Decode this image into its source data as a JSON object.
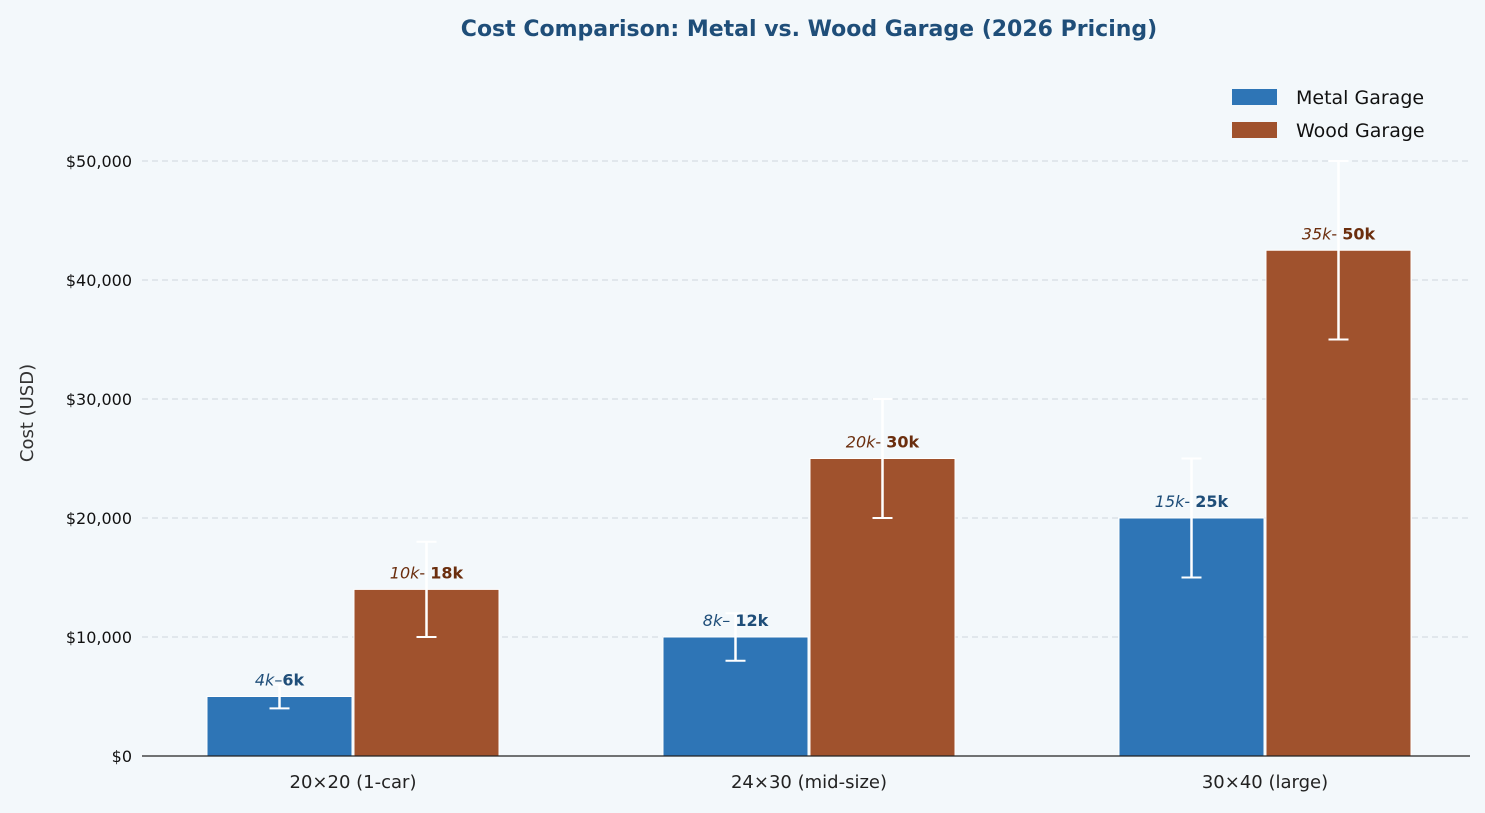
{
  "chart_data": {
    "type": "bar",
    "title": "Cost Comparison: Metal vs. Wood Garage (2026 Pricing)",
    "xlabel": "",
    "ylabel": "Cost (USD)",
    "categories": [
      "20×20 (1-car)",
      "24×30 (mid-size)",
      "30×40 (large)"
    ],
    "ylim": [
      0,
      57500
    ],
    "yticks": [
      0,
      10000,
      20000,
      30000,
      40000,
      50000
    ],
    "ytick_labels": [
      "$0",
      "$10,000",
      "$20,000",
      "$30,000",
      "$40,000",
      "$50,000"
    ],
    "grid": "y-dashed",
    "legend_position": "top-right",
    "series": [
      {
        "name": "Metal Garage",
        "color": "#2e75b6",
        "label_color": "#1f4e79",
        "values": [
          5000,
          10000,
          20000
        ],
        "error_low": [
          4000,
          8000,
          15000
        ],
        "error_high": [
          6000,
          12000,
          25000
        ],
        "labels": [
          {
            "low": "4k",
            "sep": "–",
            "high": "6k"
          },
          {
            "low": "8k",
            "sep": "– ",
            "high": "12k"
          },
          {
            "low": "15k",
            "sep": "- ",
            "high": "25k"
          }
        ]
      },
      {
        "name": "Wood Garage",
        "color": "#a0522d",
        "label_color": "#6b2e0e",
        "values": [
          14000,
          25000,
          42500
        ],
        "error_low": [
          10000,
          20000,
          35000
        ],
        "error_high": [
          18000,
          30000,
          50000
        ],
        "labels": [
          {
            "low": "10k",
            "sep": "- ",
            "high": "18k"
          },
          {
            "low": "20k",
            "sep": "- ",
            "high": "30k"
          },
          {
            "low": "35k",
            "sep": "- ",
            "high": "50k"
          }
        ]
      }
    ],
    "title_color": "#1f4e79",
    "errorbar_color": "#ffffff"
  }
}
